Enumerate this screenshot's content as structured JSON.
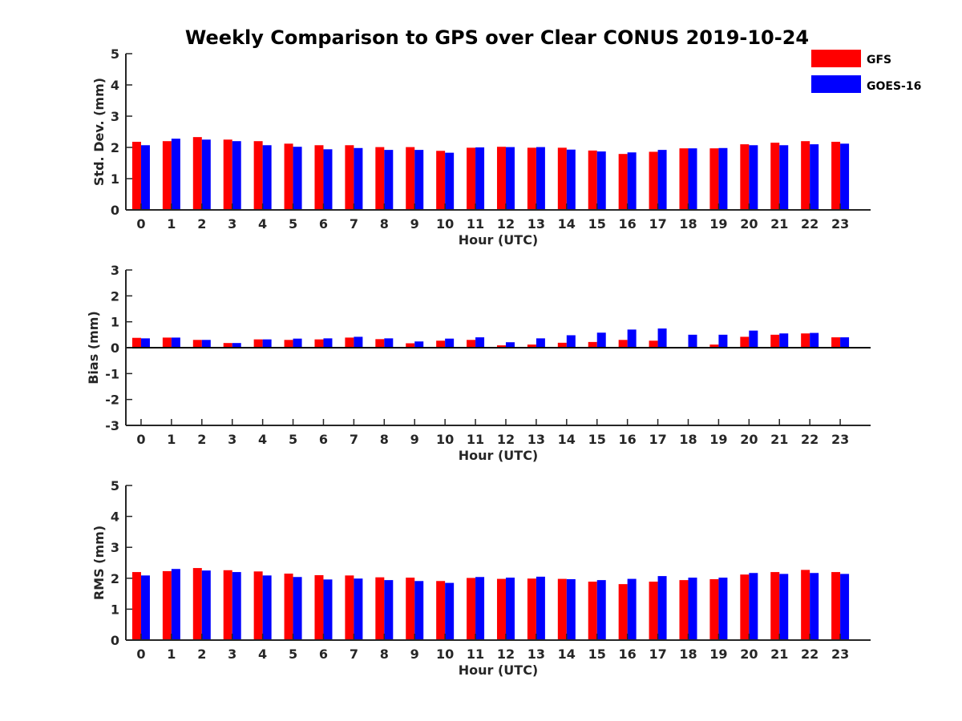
{
  "title": "Weekly Comparison to GPS over Clear CONUS 2019-10-24",
  "legend": [
    {
      "name": "GFS",
      "color": "#ff0000"
    },
    {
      "name": "GOES-16",
      "color": "#0000ff"
    }
  ],
  "chart_data": [
    {
      "type": "bar",
      "title": "Weekly Comparison to GPS over Clear CONUS 2019-10-24",
      "xlabel": "Hour (UTC)",
      "ylabel": "Std. Dev. (mm)",
      "ylim": [
        0,
        5
      ],
      "yticks": [
        0,
        1,
        2,
        3,
        4,
        5
      ],
      "categories": [
        "0",
        "1",
        "2",
        "3",
        "4",
        "5",
        "6",
        "7",
        "8",
        "9",
        "10",
        "11",
        "12",
        "13",
        "14",
        "15",
        "16",
        "17",
        "18",
        "19",
        "20",
        "21",
        "22",
        "23"
      ],
      "grid": false,
      "legend_position": "top-right",
      "series": [
        {
          "name": "GFS",
          "color": "#ff0000",
          "values": [
            2.18,
            2.2,
            2.33,
            2.25,
            2.2,
            2.12,
            2.07,
            2.07,
            2.01,
            2.01,
            1.89,
            1.99,
            2.02,
            1.99,
            1.99,
            1.9,
            1.79,
            1.86,
            1.97,
            1.97,
            2.1,
            2.15,
            2.2,
            2.18
          ]
        },
        {
          "name": "GOES-16",
          "color": "#0000ff",
          "values": [
            2.07,
            2.28,
            2.25,
            2.2,
            2.07,
            2.02,
            1.94,
            1.98,
            1.92,
            1.92,
            1.83,
            2.0,
            2.01,
            2.01,
            1.93,
            1.87,
            1.84,
            1.92,
            1.97,
            1.98,
            2.07,
            2.07,
            2.1,
            2.12
          ]
        }
      ]
    },
    {
      "type": "bar",
      "xlabel": "Hour (UTC)",
      "ylabel": "Bias (mm)",
      "ylim": [
        -3,
        3
      ],
      "yticks": [
        -3,
        -2,
        -1,
        0,
        1,
        2,
        3
      ],
      "categories": [
        "0",
        "1",
        "2",
        "3",
        "4",
        "5",
        "6",
        "7",
        "8",
        "9",
        "10",
        "11",
        "12",
        "13",
        "14",
        "15",
        "16",
        "17",
        "18",
        "19",
        "20",
        "21",
        "22",
        "23"
      ],
      "grid": false,
      "zero_line": true,
      "series": [
        {
          "name": "GFS",
          "color": "#ff0000",
          "values": [
            0.38,
            0.39,
            0.3,
            0.18,
            0.32,
            0.3,
            0.32,
            0.39,
            0.33,
            0.17,
            0.27,
            0.3,
            0.09,
            0.12,
            0.19,
            0.22,
            0.3,
            0.27,
            0.03,
            0.12,
            0.42,
            0.5,
            0.55,
            0.4
          ]
        },
        {
          "name": "GOES-16",
          "color": "#0000ff",
          "values": [
            0.36,
            0.39,
            0.3,
            0.18,
            0.32,
            0.35,
            0.36,
            0.42,
            0.36,
            0.24,
            0.35,
            0.4,
            0.21,
            0.36,
            0.48,
            0.58,
            0.7,
            0.74,
            0.5,
            0.5,
            0.66,
            0.55,
            0.57,
            0.4
          ]
        }
      ]
    },
    {
      "type": "bar",
      "xlabel": "Hour (UTC)",
      "ylabel": "RMS (mm)",
      "ylim": [
        0,
        5
      ],
      "yticks": [
        0,
        1,
        2,
        3,
        4,
        5
      ],
      "categories": [
        "0",
        "1",
        "2",
        "3",
        "4",
        "5",
        "6",
        "7",
        "8",
        "9",
        "10",
        "11",
        "12",
        "13",
        "14",
        "15",
        "16",
        "17",
        "18",
        "19",
        "20",
        "21",
        "22",
        "23"
      ],
      "grid": false,
      "series": [
        {
          "name": "GFS",
          "color": "#ff0000",
          "values": [
            2.2,
            2.23,
            2.33,
            2.26,
            2.22,
            2.15,
            2.1,
            2.09,
            2.03,
            2.02,
            1.91,
            2.01,
            1.98,
            1.99,
            1.98,
            1.89,
            1.81,
            1.89,
            1.94,
            1.97,
            2.12,
            2.2,
            2.27,
            2.2
          ]
        },
        {
          "name": "GOES-16",
          "color": "#0000ff",
          "values": [
            2.09,
            2.3,
            2.25,
            2.2,
            2.09,
            2.04,
            1.96,
            1.99,
            1.94,
            1.91,
            1.85,
            2.04,
            2.02,
            2.05,
            1.97,
            1.94,
            1.98,
            2.07,
            2.02,
            2.02,
            2.17,
            2.14,
            2.17,
            2.14
          ]
        }
      ]
    }
  ]
}
